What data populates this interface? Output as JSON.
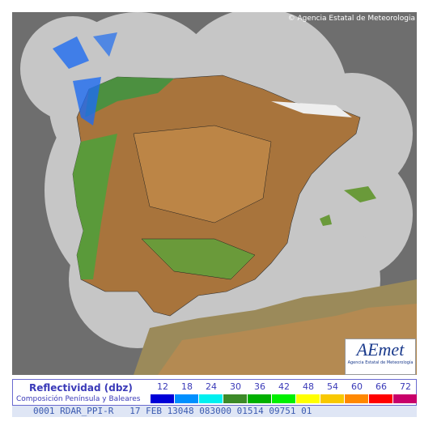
{
  "map": {
    "credit": "© Agencia Estatal de Meteorologia"
  },
  "logo": {
    "name": "AEmet",
    "subtitle": "Agencia Estatal de Meteorología"
  },
  "legend": {
    "title": "Reflectividad (dbz)",
    "subtitle": "Composición Península y Baleares",
    "items": [
      {
        "value": 12,
        "color": "#0000d8"
      },
      {
        "value": 18,
        "color": "#0090ff"
      },
      {
        "value": 24,
        "color": "#00f0f0"
      },
      {
        "value": 30,
        "color": "#3c8a28"
      },
      {
        "value": 36,
        "color": "#00b000"
      },
      {
        "value": 42,
        "color": "#00f000"
      },
      {
        "value": 48,
        "color": "#ffff00"
      },
      {
        "value": 54,
        "color": "#f8c800"
      },
      {
        "value": 60,
        "color": "#ff8800"
      },
      {
        "value": 66,
        "color": "#ff0000"
      },
      {
        "value": 72,
        "color": "#c8006a"
      }
    ]
  },
  "status": "0001 RDAR_PPI-R   17 FEB 13048 083000 01514 09751 01"
}
